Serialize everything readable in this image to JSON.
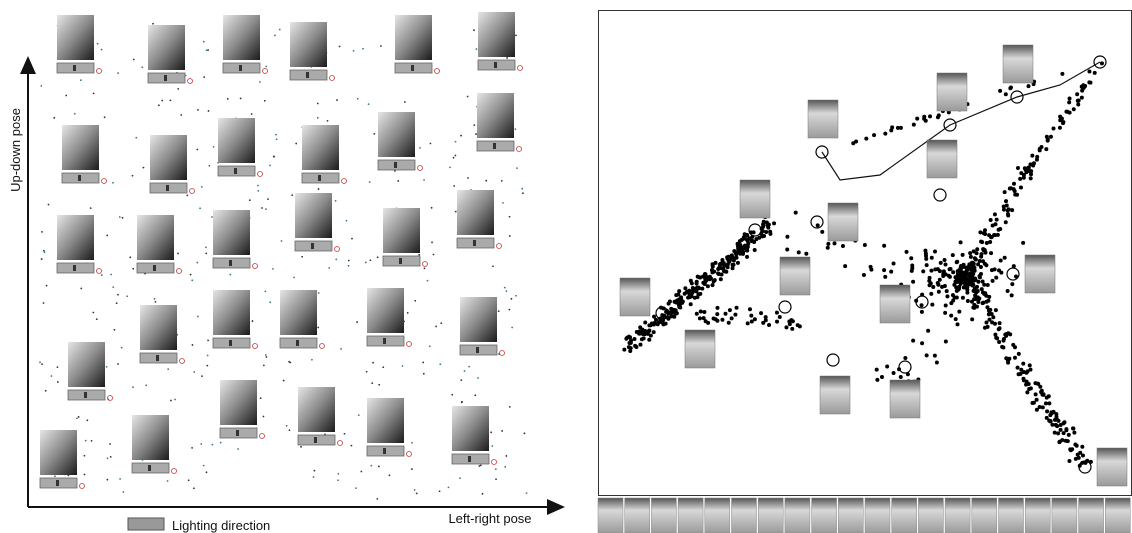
{
  "left_panel": {
    "y_axis_label": "Up-down pose",
    "x_axis_label": "Left-right pose",
    "legend_label": "Lighting direction"
  }
}
